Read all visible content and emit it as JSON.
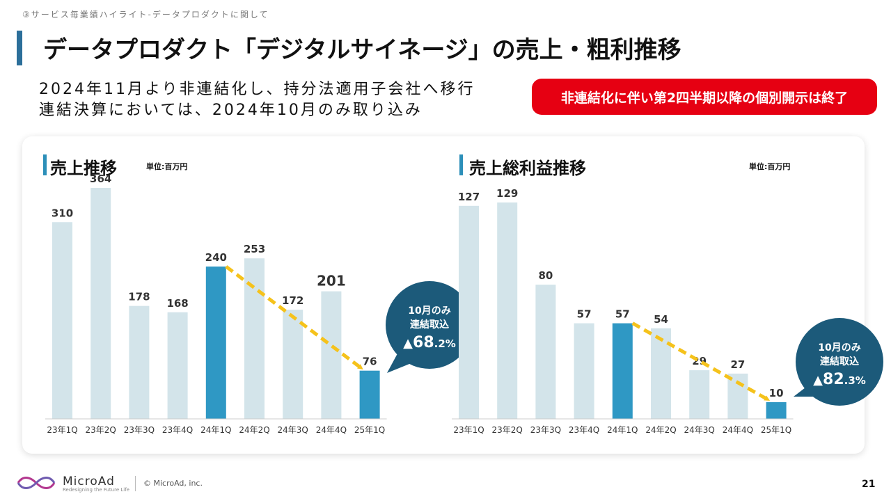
{
  "header": {
    "breadcrumb": "③サービス毎業績ハイライト-データプロダクトに関して",
    "title": "データプロダクト「デジタルサイネージ」の売上・粗利推移",
    "subtitle_line1": "2024年11月より非連結化し、持分法適用子会社へ移行",
    "subtitle_line2": "連結決算においては、2024年10月のみ取り込み",
    "badge": "非連結化に伴い第2四半期以降の個別開示は終了"
  },
  "colors": {
    "bar_light": "#d3e4ea",
    "bar_highlight": "#2f98c4",
    "arrow": "#f5c21b",
    "bubble": "#1c5a7a",
    "badge": "#e60012"
  },
  "chart_data": [
    {
      "type": "bar",
      "title": "売上推移",
      "unit": "単位:百万円",
      "categories": [
        "23年1Q",
        "23年2Q",
        "23年3Q",
        "23年4Q",
        "24年1Q",
        "24年2Q",
        "24年3Q",
        "24年4Q",
        "25年1Q"
      ],
      "values": [
        310,
        364,
        178,
        168,
        240,
        253,
        172,
        201,
        76
      ],
      "labels": [
        "310",
        "364",
        "178",
        "168",
        "240",
        "253",
        "172",
        "201",
        "76"
      ],
      "highlight": [
        4,
        8
      ],
      "ylim": [
        0,
        364
      ],
      "arrow": {
        "from": 4,
        "to": 8
      },
      "callout": {
        "line1": "10月のみ",
        "line2": "連結取込",
        "change_prefix": "▲",
        "change_value": "68",
        "change_suffix": ".2%"
      }
    },
    {
      "type": "bar",
      "title": "売上総利益推移",
      "unit": "単位:百万円",
      "categories": [
        "23年1Q",
        "23年2Q",
        "23年3Q",
        "23年4Q",
        "24年1Q",
        "24年2Q",
        "24年3Q",
        "24年4Q",
        "25年1Q"
      ],
      "values": [
        127,
        129,
        80,
        57,
        57,
        54,
        29,
        27,
        10
      ],
      "labels": [
        "127",
        "129",
        "80",
        "57",
        "57",
        "54",
        "29",
        "27",
        "10"
      ],
      "highlight": [
        4,
        8
      ],
      "ylim": [
        0,
        129
      ],
      "arrow": {
        "from": 4,
        "to": 8
      },
      "callout": {
        "line1": "10月のみ",
        "line2": "連結取込",
        "change_prefix": "▲",
        "change_value": "82",
        "change_suffix": ".3%"
      }
    }
  ],
  "footer": {
    "brand": "MicroAd",
    "tagline": "Redesigning the Future Life",
    "copyright": "© MicroAd, inc.",
    "page_number": "21"
  }
}
